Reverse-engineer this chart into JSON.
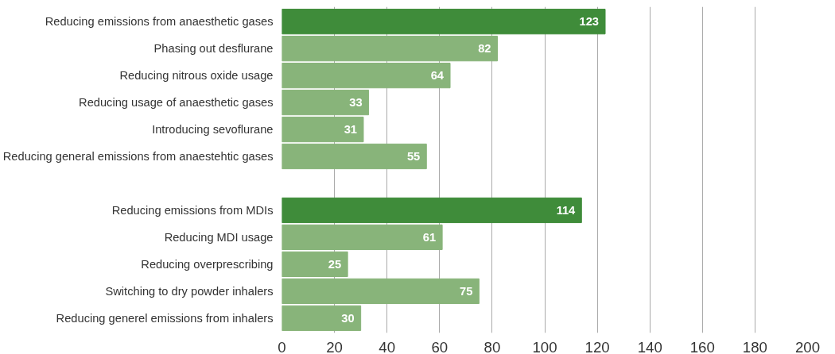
{
  "chart_data": {
    "type": "bar",
    "orientation": "horizontal",
    "categories": [
      "Reducing emissions from anaesthetic gases",
      "Phasing out desflurane",
      "Reducing nitrous oxide usage",
      "Reducing usage of anaesthetic gases",
      "Introducing sevoflurane",
      "Reducing general emissions from anaestehtic gases",
      null,
      "Reducing emissions from MDIs",
      "Reducing MDI usage",
      "Reducing overprescribing",
      "Switching to dry powder inhalers",
      "Reducing generel emissions from inhalers"
    ],
    "values": [
      123,
      82,
      64,
      33,
      31,
      55,
      null,
      114,
      61,
      25,
      75,
      30
    ],
    "colors": [
      "#3f8c3a",
      "#88b47a",
      "#88b47a",
      "#88b47a",
      "#88b47a",
      "#88b47a",
      "#88b47a",
      "#3f8c3a",
      "#88b47a",
      "#88b47a",
      "#88b47a",
      "#88b47a"
    ],
    "xlim": [
      0,
      200
    ],
    "xticks": [
      0,
      20,
      40,
      60,
      80,
      100,
      120,
      140,
      160,
      180,
      200
    ],
    "grid": "x",
    "data_labels": true
  }
}
